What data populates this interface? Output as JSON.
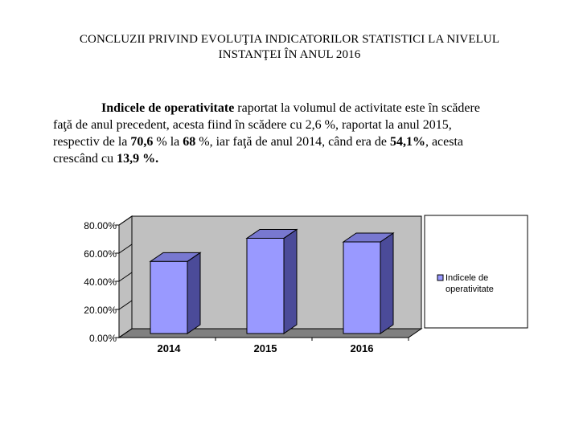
{
  "title": {
    "line1": "CONCLUZII PRIVIND EVOLUŢIA INDICATORILOR STATISTICI LA NIVELUL",
    "line2": "INSTANŢEI ÎN ANUL 2016"
  },
  "paragraph": {
    "l1_bold": "Indicele de operativitate",
    "l1_rest": " raportat la volumul de activitate este în scădere",
    "l2": "faţă de anul  precedent, acesta fiind în scădere  cu 2,6 %, raportat la anul 2015,",
    "l3_a": "respectiv de la ",
    "l3_b": "70,6",
    "l3_c": " % la ",
    "l3_d": "68",
    "l3_e": " %,  iar faţă de anul 2014, când era de ",
    "l3_f": "54,1%",
    "l3_g": ", acesta",
    "l4_a": "crescând cu ",
    "l4_b": "13,9 %."
  },
  "chart_data": {
    "type": "bar",
    "categories": [
      "2014",
      "2015",
      "2016"
    ],
    "series": [
      {
        "name": "Indicele de operativitate",
        "values": [
          54.1,
          70.6,
          68.0
        ]
      }
    ],
    "ylim": [
      0,
      80
    ],
    "yticks": [
      "0.00%",
      "20.00%",
      "40.00%",
      "60.00%",
      "80.00%"
    ],
    "legend": {
      "position": "right",
      "label_line1": "Indicele de",
      "label_line2": "operativitate"
    },
    "colors": {
      "bar_front": "#9999ff",
      "bar_side": "#4b4b99",
      "bar_top": "#7878d0",
      "wall": "#c0c0c0",
      "floor": "#808080"
    },
    "grid": false
  }
}
